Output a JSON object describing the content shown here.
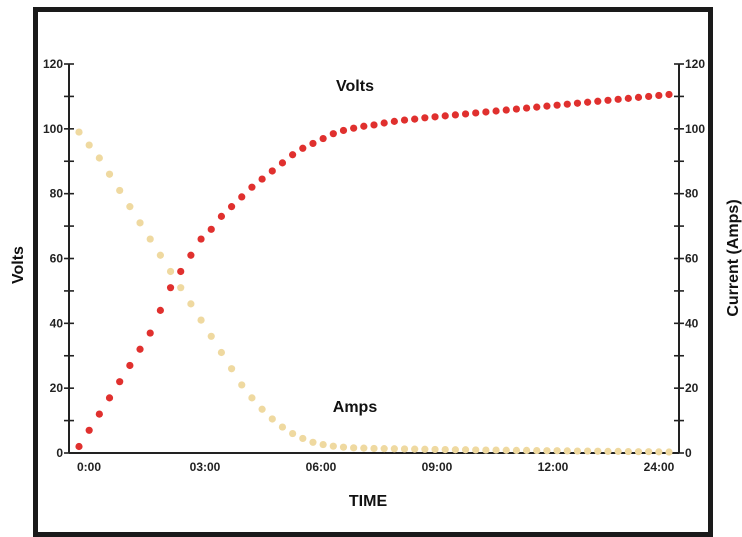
{
  "chart_data": {
    "type": "scatter",
    "title": "",
    "xlabel": "TIME",
    "ylabel": "Volts",
    "ylabel_right": "Current (Amps)",
    "ylim": [
      0,
      120
    ],
    "ylim_right": [
      0,
      120
    ],
    "grid": false,
    "x_tick_labels": [
      "0:00",
      "03:00",
      "06:00",
      "09:00",
      "12:00",
      "24:00"
    ],
    "y_tick_labels": [
      "0",
      "20",
      "40",
      "60",
      "80",
      "100",
      "120"
    ],
    "y_right_tick_labels": [
      "0",
      "20",
      "40",
      "60",
      "80",
      "100",
      "120"
    ],
    "annotations": [
      {
        "text": "Volts",
        "series": "volts"
      },
      {
        "text": "Amps",
        "series": "amps"
      }
    ],
    "point_count": 59,
    "series": [
      {
        "key": "volts",
        "color": "#e0302e",
        "values": [
          2,
          7,
          12,
          17,
          22,
          27,
          32,
          37,
          44,
          51,
          56,
          61,
          66,
          69,
          73,
          76,
          79,
          82,
          84.5,
          87,
          89.5,
          92,
          94,
          95.5,
          97,
          98.5,
          99.5,
          100.2,
          100.8,
          101.2,
          101.8,
          102.3,
          102.7,
          103,
          103.4,
          103.7,
          104,
          104.3,
          104.6,
          104.9,
          105.2,
          105.5,
          105.8,
          106.1,
          106.4,
          106.7,
          107,
          107.3,
          107.6,
          107.9,
          108.2,
          108.5,
          108.8,
          109.1,
          109.4,
          109.7,
          110,
          110.3,
          110.6
        ]
      },
      {
        "key": "amps",
        "color": "#efd9a0",
        "values": [
          99,
          95,
          91,
          86,
          81,
          76,
          71,
          66,
          61,
          56,
          51,
          46,
          41,
          36,
          31,
          26,
          21,
          17,
          13.5,
          10.5,
          8,
          6,
          4.5,
          3.3,
          2.6,
          2.1,
          1.8,
          1.6,
          1.5,
          1.4,
          1.35,
          1.3,
          1.25,
          1.2,
          1.15,
          1.1,
          1.05,
          1,
          1,
          0.95,
          0.9,
          0.9,
          0.85,
          0.8,
          0.8,
          0.75,
          0.7,
          0.7,
          0.65,
          0.6,
          0.6,
          0.55,
          0.5,
          0.5,
          0.45,
          0.4,
          0.4,
          0.35,
          0.3
        ]
      }
    ]
  }
}
